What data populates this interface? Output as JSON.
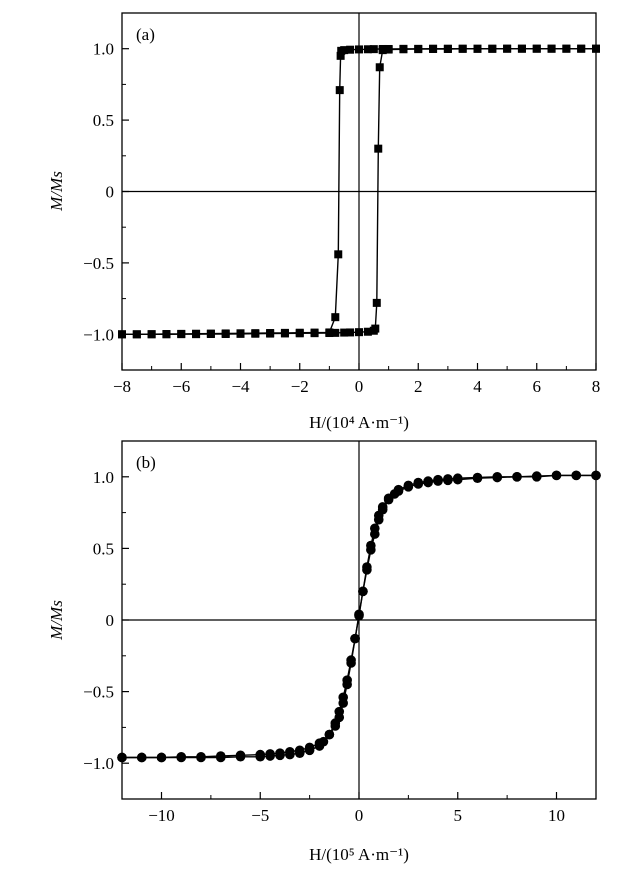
{
  "chart_data": [
    {
      "type": "line",
      "panel_label": "(a)",
      "xlabel": "H/(10⁴ A·m⁻¹)",
      "ylabel": "M/Ms",
      "xlim": [
        -8,
        8
      ],
      "ylim": [
        -1.25,
        1.25
      ],
      "x_ticks": [
        -8,
        -6,
        -4,
        -2,
        0,
        2,
        4,
        6,
        8
      ],
      "x_tick_labels": [
        "−8",
        "−6",
        "−4",
        "−2",
        "0",
        "2",
        "4",
        "6",
        "8"
      ],
      "y_ticks": [
        -1.0,
        -0.5,
        0,
        0.5,
        1.0
      ],
      "y_tick_labels": [
        "−1.0",
        "−0.5",
        "0",
        "0.5",
        "1.0"
      ],
      "zero_lines": true,
      "marker": "square",
      "series": [
        {
          "x": [
            -8.0,
            -7.5,
            -7.0,
            -6.5,
            -6.0,
            -5.5,
            -5.0,
            -4.5,
            -4.0,
            -3.5,
            -3.0,
            -2.5,
            -2.0,
            -1.5,
            -1.0,
            -0.8,
            -0.7,
            -0.65,
            -0.62,
            -0.6,
            -0.5,
            -0.3,
            0.0,
            0.3,
            0.5,
            0.8,
            1.0,
            1.5,
            2.0,
            2.5,
            3.0,
            3.5,
            4.0,
            4.5,
            5.0,
            5.5,
            6.0,
            6.5,
            7.0,
            7.5,
            8.0
          ],
          "y": [
            -1.0,
            -1.0,
            -0.999,
            -0.998,
            -0.997,
            -0.996,
            -0.995,
            -0.994,
            -0.993,
            -0.992,
            -0.991,
            -0.99,
            -0.989,
            -0.988,
            -0.987,
            -0.88,
            -0.44,
            0.71,
            0.95,
            0.985,
            0.99,
            0.993,
            0.995,
            0.996,
            0.997,
            0.998,
            0.998,
            0.999,
            0.999,
            1.0,
            1.0,
            1.0,
            1.0,
            1.0,
            1.0,
            1.0,
            1.0,
            1.0,
            1.0,
            1.0,
            1.0
          ]
        },
        {
          "x": [
            8.0,
            7.5,
            7.0,
            6.5,
            6.0,
            5.5,
            5.0,
            4.5,
            4.0,
            3.5,
            3.0,
            2.5,
            2.0,
            1.5,
            1.0,
            0.8,
            0.7,
            0.65,
            0.6,
            0.55,
            0.5,
            0.3,
            0.0,
            -0.3,
            -0.5,
            -0.8,
            -1.0,
            -1.5,
            -2.0,
            -2.5,
            -3.0,
            -3.5,
            -4.0,
            -4.5,
            -5.0,
            -5.5,
            -6.0,
            -6.5,
            -7.0,
            -7.5,
            -8.0
          ],
          "y": [
            1.0,
            1.0,
            1.0,
            1.0,
            1.0,
            1.0,
            1.0,
            0.999,
            0.999,
            0.999,
            0.998,
            0.998,
            0.997,
            0.996,
            0.994,
            0.99,
            0.87,
            0.3,
            -0.78,
            -0.96,
            -0.975,
            -0.982,
            -0.985,
            -0.987,
            -0.988,
            -0.99,
            -0.991,
            -0.992,
            -0.993,
            -0.994,
            -0.995,
            -0.996,
            -0.997,
            -0.998,
            -0.998,
            -0.999,
            -0.999,
            -1.0,
            -1.0,
            -1.0,
            -1.0
          ]
        }
      ]
    },
    {
      "type": "line",
      "panel_label": "(b)",
      "xlabel": "H/(10⁵ A·m⁻¹)",
      "ylabel": "M/Ms",
      "xlim": [
        -12,
        12
      ],
      "ylim": [
        -1.25,
        1.25
      ],
      "x_ticks": [
        -10,
        -5,
        0,
        5,
        10
      ],
      "x_tick_labels": [
        "−10",
        "−5",
        "0",
        "5",
        "10"
      ],
      "y_ticks": [
        -1.0,
        -0.5,
        0,
        0.5,
        1.0
      ],
      "y_tick_labels": [
        "−1.0",
        "−0.5",
        "0",
        "0.5",
        "1.0"
      ],
      "zero_lines": true,
      "marker": "circle",
      "series": [
        {
          "x": [
            -12.0,
            -11.0,
            -10.0,
            -9.0,
            -8.0,
            -7.0,
            -6.0,
            -5.0,
            -4.5,
            -4.0,
            -3.5,
            -3.0,
            -2.5,
            -2.0,
            -1.5,
            -1.2,
            -1.0,
            -0.8,
            -0.6,
            -0.4,
            -0.2,
            0.0,
            0.2,
            0.4,
            0.6,
            0.8,
            1.0,
            1.2,
            1.5,
            1.8,
            2.0,
            2.5,
            3.0,
            3.5,
            4.0,
            4.5,
            5.0,
            6.0,
            7.0,
            8.0,
            9.0,
            10.0,
            11.0,
            12.0
          ],
          "y": [
            -0.96,
            -0.96,
            -0.96,
            -0.955,
            -0.955,
            -0.95,
            -0.945,
            -0.94,
            -0.935,
            -0.93,
            -0.92,
            -0.91,
            -0.89,
            -0.86,
            -0.8,
            -0.74,
            -0.68,
            -0.58,
            -0.45,
            -0.3,
            -0.13,
            0.03,
            0.2,
            0.35,
            0.49,
            0.6,
            0.7,
            0.77,
            0.84,
            0.88,
            0.9,
            0.93,
            0.95,
            0.96,
            0.97,
            0.975,
            0.98,
            0.99,
            0.995,
            1.0,
            1.0,
            1.01,
            1.01,
            1.01
          ]
        },
        {
          "x": [
            12.0,
            11.0,
            10.0,
            9.0,
            8.0,
            7.0,
            6.0,
            5.0,
            4.5,
            4.0,
            3.5,
            3.0,
            2.5,
            2.0,
            1.5,
            1.2,
            1.0,
            0.8,
            0.6,
            0.4,
            0.2,
            0.0,
            -0.2,
            -0.4,
            -0.6,
            -0.8,
            -1.0,
            -1.2,
            -1.5,
            -1.8,
            -2.0,
            -2.5,
            -3.0,
            -3.5,
            -4.0,
            -4.5,
            -5.0,
            -6.0,
            -7.0,
            -8.0,
            -9.0,
            -10.0,
            -11.0,
            -12.0
          ],
          "y": [
            1.01,
            1.01,
            1.01,
            1.005,
            1.0,
            1.0,
            0.995,
            0.99,
            0.985,
            0.98,
            0.97,
            0.96,
            0.94,
            0.91,
            0.85,
            0.79,
            0.73,
            0.64,
            0.52,
            0.37,
            0.2,
            0.04,
            -0.13,
            -0.28,
            -0.42,
            -0.54,
            -0.64,
            -0.72,
            -0.8,
            -0.85,
            -0.88,
            -0.91,
            -0.93,
            -0.94,
            -0.945,
            -0.95,
            -0.955,
            -0.955,
            -0.96,
            -0.96,
            -0.96,
            -0.96,
            -0.96,
            -0.96
          ]
        }
      ]
    }
  ]
}
